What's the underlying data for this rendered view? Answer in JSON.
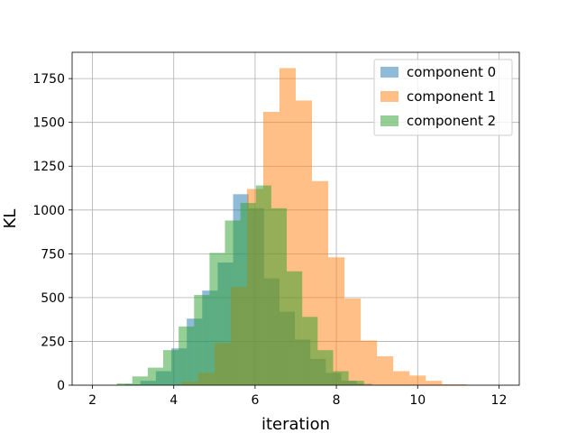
{
  "chart_data": {
    "type": "bar",
    "subtype": "overlapping-histogram",
    "title": "",
    "xlabel": "iteration",
    "ylabel": "KL",
    "xlim": [
      1.5,
      12.5
    ],
    "ylim": [
      0,
      1900
    ],
    "xticks": [
      2,
      4,
      6,
      8,
      10,
      12
    ],
    "yticks": [
      0,
      250,
      500,
      750,
      1000,
      1250,
      1500,
      1750
    ],
    "grid": true,
    "legend_position": "top-right",
    "bar_opacity": 0.5,
    "series": [
      {
        "name": "component 0",
        "color": "#1f77b4",
        "bins": [
          {
            "x0": 2.8,
            "x1": 3.18,
            "value": 5
          },
          {
            "x0": 3.18,
            "x1": 3.56,
            "value": 25
          },
          {
            "x0": 3.56,
            "x1": 3.94,
            "value": 80
          },
          {
            "x0": 3.94,
            "x1": 4.32,
            "value": 210
          },
          {
            "x0": 4.32,
            "x1": 4.7,
            "value": 380
          },
          {
            "x0": 4.7,
            "x1": 5.08,
            "value": 540
          },
          {
            "x0": 5.08,
            "x1": 5.46,
            "value": 700
          },
          {
            "x0": 5.46,
            "x1": 5.84,
            "value": 1090
          },
          {
            "x0": 5.84,
            "x1": 6.22,
            "value": 1010
          },
          {
            "x0": 6.22,
            "x1": 6.6,
            "value": 610
          },
          {
            "x0": 6.6,
            "x1": 6.98,
            "value": 420
          },
          {
            "x0": 6.98,
            "x1": 7.36,
            "value": 260
          },
          {
            "x0": 7.36,
            "x1": 7.74,
            "value": 150
          },
          {
            "x0": 7.74,
            "x1": 8.12,
            "value": 70
          },
          {
            "x0": 8.12,
            "x1": 8.5,
            "value": 25
          },
          {
            "x0": 8.5,
            "x1": 8.88,
            "value": 8
          }
        ]
      },
      {
        "name": "component 1",
        "color": "#ff7f0e",
        "bins": [
          {
            "x0": 4.2,
            "x1": 4.6,
            "value": 20
          },
          {
            "x0": 4.6,
            "x1": 5.0,
            "value": 70
          },
          {
            "x0": 5.0,
            "x1": 5.4,
            "value": 240
          },
          {
            "x0": 5.4,
            "x1": 5.8,
            "value": 560
          },
          {
            "x0": 5.8,
            "x1": 6.2,
            "value": 1120
          },
          {
            "x0": 6.2,
            "x1": 6.6,
            "value": 1560
          },
          {
            "x0": 6.6,
            "x1": 7.0,
            "value": 1810
          },
          {
            "x0": 7.0,
            "x1": 7.4,
            "value": 1625
          },
          {
            "x0": 7.4,
            "x1": 7.8,
            "value": 1165
          },
          {
            "x0": 7.8,
            "x1": 8.2,
            "value": 730
          },
          {
            "x0": 8.2,
            "x1": 8.6,
            "value": 495
          },
          {
            "x0": 8.6,
            "x1": 9.0,
            "value": 255
          },
          {
            "x0": 9.0,
            "x1": 9.4,
            "value": 165
          },
          {
            "x0": 9.4,
            "x1": 9.8,
            "value": 80
          },
          {
            "x0": 9.8,
            "x1": 10.2,
            "value": 55
          },
          {
            "x0": 10.2,
            "x1": 10.6,
            "value": 25
          },
          {
            "x0": 10.6,
            "x1": 11.2,
            "value": 5
          }
        ]
      },
      {
        "name": "component 2",
        "color": "#2ca02c",
        "bins": [
          {
            "x0": 2.6,
            "x1": 2.98,
            "value": 10
          },
          {
            "x0": 2.98,
            "x1": 3.36,
            "value": 50
          },
          {
            "x0": 3.36,
            "x1": 3.74,
            "value": 100
          },
          {
            "x0": 3.74,
            "x1": 4.12,
            "value": 200
          },
          {
            "x0": 4.12,
            "x1": 4.5,
            "value": 335
          },
          {
            "x0": 4.5,
            "x1": 4.88,
            "value": 515
          },
          {
            "x0": 4.88,
            "x1": 5.26,
            "value": 755
          },
          {
            "x0": 5.26,
            "x1": 5.64,
            "value": 940
          },
          {
            "x0": 5.64,
            "x1": 6.02,
            "value": 1040
          },
          {
            "x0": 6.02,
            "x1": 6.4,
            "value": 1140
          },
          {
            "x0": 6.4,
            "x1": 6.78,
            "value": 1010
          },
          {
            "x0": 6.78,
            "x1": 7.16,
            "value": 650
          },
          {
            "x0": 7.16,
            "x1": 7.54,
            "value": 390
          },
          {
            "x0": 7.54,
            "x1": 7.92,
            "value": 200
          },
          {
            "x0": 7.92,
            "x1": 8.3,
            "value": 80
          },
          {
            "x0": 8.3,
            "x1": 8.68,
            "value": 25
          }
        ]
      }
    ]
  }
}
